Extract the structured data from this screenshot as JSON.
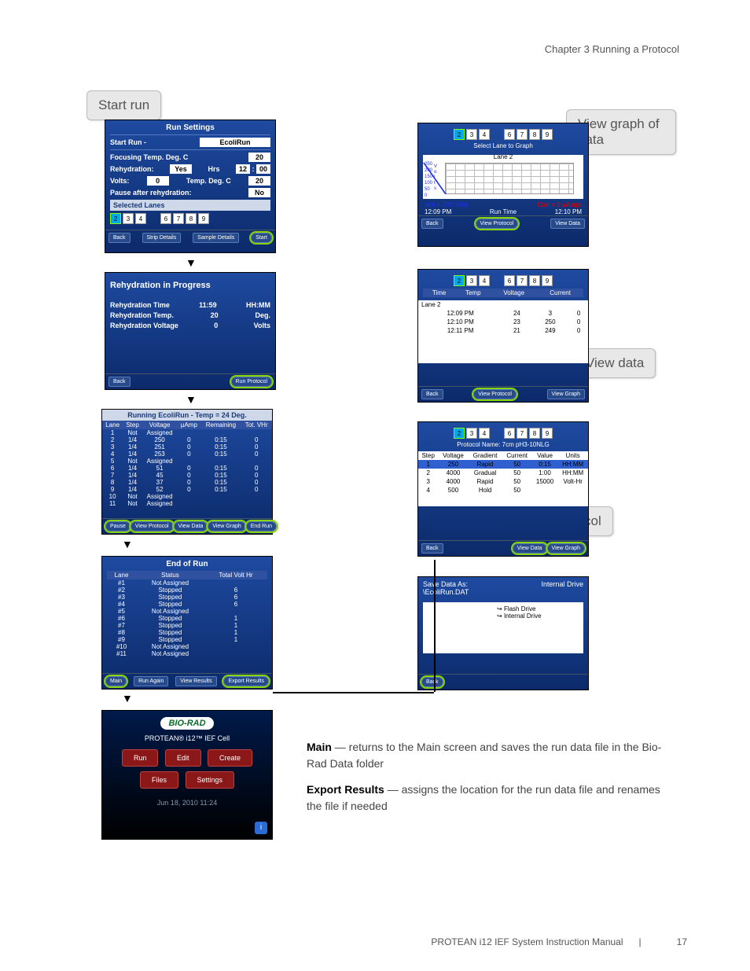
{
  "page": {
    "chapter": "Chapter 3 Running a Protocol",
    "footer_title": "PROTEAN i12 IEF System Instruction Manual",
    "page_num": "17"
  },
  "callouts": {
    "start": "Start run",
    "graph": "View graph of data",
    "data": "View data",
    "protocol": "View protocol"
  },
  "run_settings": {
    "title": "Run Settings",
    "start_label": "Start Run -",
    "protocol_name": "EcoliRun",
    "focus_temp_label": "Focusing Temp. Deg. C",
    "focus_temp": "20",
    "rehydration_label": "Rehydration:",
    "rehydration": "Yes",
    "hrs_label": "Hrs",
    "hrs": "12",
    "mins": "00",
    "volts_label": "Volts:",
    "volts": "0",
    "temp_label": "Temp. Deg. C",
    "temp": "20",
    "pause_label": "Pause after rehydration:",
    "pause": "No",
    "selected_label": "Selected Lanes",
    "lanes": [
      "2",
      "3",
      "4",
      "",
      "6",
      "7",
      "8",
      "9"
    ],
    "btns": {
      "back": "Back",
      "strip": "Strip Details",
      "sample": "Sample Details",
      "start": "Start"
    }
  },
  "rehydration": {
    "title": "Rehydration in Progress",
    "rows": [
      [
        "Rehydration Time",
        "11:59",
        "HH:MM"
      ],
      [
        "Rehydration Temp.",
        "20",
        "Deg."
      ],
      [
        "Rehydration Voltage",
        "0",
        "Volts"
      ]
    ],
    "btns": {
      "back": "Back",
      "run": "Run Protocol"
    }
  },
  "running": {
    "title": "Running EcoliRun - Temp = 24 Deg.",
    "hdr": [
      "Lane",
      "Step",
      "Voltage",
      "µAmp",
      "Remaining",
      "Tot. VHr"
    ],
    "rows": [
      [
        "1",
        "Not",
        "Assigned",
        "",
        "",
        ""
      ],
      [
        "2",
        "1/4",
        "250",
        "0",
        "0:15",
        "0"
      ],
      [
        "3",
        "1/4",
        "251",
        "0",
        "0:15",
        "0"
      ],
      [
        "4",
        "1/4",
        "253",
        "0",
        "0:15",
        "0"
      ],
      [
        "5",
        "Not",
        "Assigned",
        "",
        "",
        ""
      ],
      [
        "6",
        "1/4",
        "51",
        "0",
        "0:15",
        "0"
      ],
      [
        "7",
        "1/4",
        "45",
        "0",
        "0:15",
        "0"
      ],
      [
        "8",
        "1/4",
        "37",
        "0",
        "0:15",
        "0"
      ],
      [
        "9",
        "1/4",
        "52",
        "0",
        "0:15",
        "0"
      ],
      [
        "10",
        "Not",
        "Assigned",
        "",
        "",
        ""
      ],
      [
        "11",
        "Not",
        "Assigned",
        "",
        "",
        ""
      ]
    ],
    "btns": {
      "pause": "Pause",
      "view": "View Protocol",
      "data": "View Data",
      "graph": "View Graph",
      "end": "End Run"
    }
  },
  "end_run": {
    "title": "End of Run",
    "hdr": [
      "Lane",
      "Status",
      "Total Volt Hr"
    ],
    "rows": [
      [
        "#1",
        "Not Assigned",
        ""
      ],
      [
        "#2",
        "Stopped",
        "6"
      ],
      [
        "#3",
        "Stopped",
        "6"
      ],
      [
        "#4",
        "Stopped",
        "6"
      ],
      [
        "#5",
        "Not Assigned",
        ""
      ],
      [
        "#6",
        "Stopped",
        "1"
      ],
      [
        "#7",
        "Stopped",
        "1"
      ],
      [
        "#8",
        "Stopped",
        "1"
      ],
      [
        "#9",
        "Stopped",
        "1"
      ],
      [
        "#10",
        "Not Assigned",
        ""
      ],
      [
        "#11",
        "Not Assigned",
        ""
      ]
    ],
    "btns": {
      "main": "Main",
      "again": "Run Again",
      "view": "View Results",
      "export": "Export Results"
    }
  },
  "graph": {
    "select_label": "Select Lane to Graph",
    "lane_title": "Lane 2",
    "volt_text": "Volt = 250 Volts",
    "curr_text": "Curr = 0 µAmps",
    "t1": "12:09 PM",
    "mid": "Run Time",
    "t2": "12:10 PM",
    "y": [
      "250",
      "200",
      "150",
      "100",
      "50",
      "0"
    ],
    "btns": {
      "back": "Back",
      "view": "View Protocol",
      "data": "View Data"
    }
  },
  "data_view": {
    "hdr": [
      "Time",
      "Temp",
      "Voltage",
      "Current"
    ],
    "lane_hdr": "Lane 2",
    "rows": [
      [
        "12:09 PM",
        "24",
        "3",
        "0"
      ],
      [
        "12:10 PM",
        "23",
        "250",
        "0"
      ],
      [
        "12:11 PM",
        "21",
        "249",
        "0"
      ]
    ],
    "btns": {
      "back": "Back",
      "view": "View Protocol",
      "graph": "View Graph"
    }
  },
  "protocol_view": {
    "name_label": "Protocol Name:",
    "name": "7cm pH3-10NLG",
    "hdr": [
      "Step",
      "Voltage",
      "Gradient",
      "Current",
      "Value",
      "Units"
    ],
    "rows": [
      [
        "1",
        "250",
        "Rapid",
        "50",
        "0:15",
        "HH:MM"
      ],
      [
        "2",
        "4000",
        "Gradual",
        "50",
        "1:00",
        "HH:MM"
      ],
      [
        "3",
        "4000",
        "Rapid",
        "50",
        "15000",
        "Volt-Hr"
      ],
      [
        "4",
        "500",
        "Hold",
        "50",
        "",
        ""
      ]
    ],
    "btns": {
      "back": "Back",
      "data": "View Data",
      "graph": "View Graph"
    }
  },
  "save": {
    "title": "Save Data As:",
    "path": "\\EcoliRun.DAT",
    "drive": "Internal Drive",
    "opts": [
      "Flash Drive",
      "Internal Drive"
    ],
    "btns": {
      "back": "Back"
    }
  },
  "main": {
    "brand": "BIO-RAD",
    "product": "PROTEAN® i12™ IEF Cell",
    "btns": {
      "run": "Run",
      "edit": "Edit",
      "create": "Create",
      "files": "Files",
      "settings": "Settings"
    },
    "date": "Jun 18, 2010 11:24"
  },
  "explain": {
    "main_label": "Main",
    "main_text": " — returns to the Main screen and saves the run data file in the Bio-Rad Data folder",
    "export_label": "Export Results",
    "export_text": " — assigns the location for the run data file and renames the file if needed"
  }
}
